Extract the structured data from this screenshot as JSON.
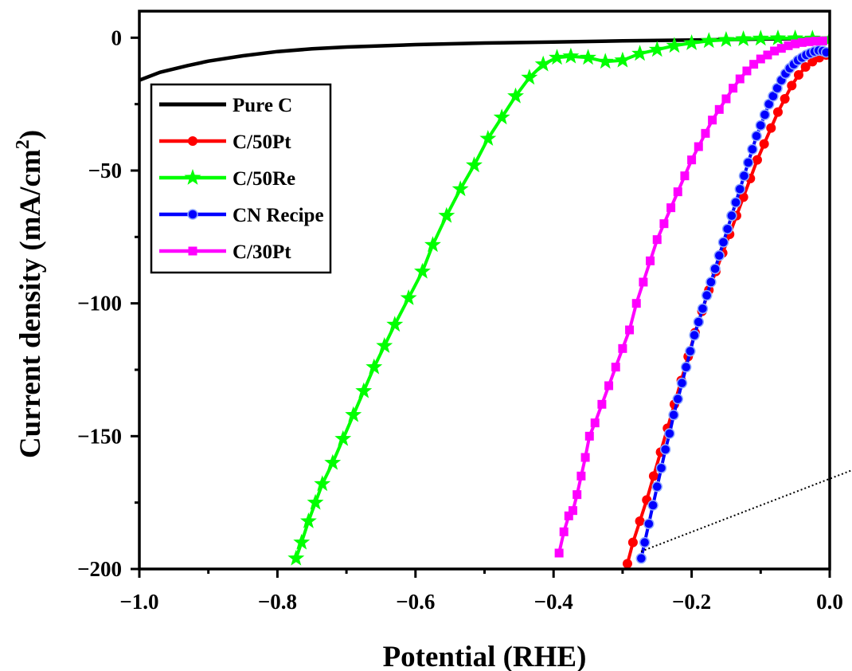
{
  "chart_data": {
    "type": "line",
    "xlabel": "Potential (RHE)",
    "ylabel": "Current density (mA/cm",
    "ylabel_sup": "2",
    "ylabel_end": ")",
    "xlim": [
      -1.0,
      0.0
    ],
    "ylim": [
      -200,
      10
    ],
    "x_ticks": [
      -1.0,
      -0.8,
      -0.6,
      -0.4,
      -0.2,
      0.0
    ],
    "x_tick_labels": [
      "−1.0",
      "−0.8",
      "−0.6",
      "−0.4",
      "−0.2",
      "0.0"
    ],
    "y_ticks": [
      0,
      -50,
      -100,
      -150,
      -200
    ],
    "y_tick_labels": [
      "0",
      "−50",
      "−100",
      "−150",
      "−200"
    ],
    "grid": false,
    "legend_position": "top-left",
    "series": [
      {
        "name": "Pure C",
        "color": "#000000",
        "marker": "none",
        "x": [
          -1.0,
          -0.97,
          -0.93,
          -0.9,
          -0.85,
          -0.8,
          -0.75,
          -0.7,
          -0.6,
          -0.5,
          -0.4,
          -0.3,
          -0.2,
          -0.1,
          0.0
        ],
        "y": [
          -16,
          -13,
          -10.5,
          -8.8,
          -6.8,
          -5.2,
          -4.2,
          -3.5,
          -2.6,
          -2.0,
          -1.6,
          -1.2,
          -0.9,
          -0.5,
          -0.2
        ]
      },
      {
        "name": "C/50Pt",
        "color": "#ff0000",
        "marker": "circle",
        "x": [
          -0.293,
          -0.285,
          -0.275,
          -0.265,
          -0.255,
          -0.245,
          -0.235,
          -0.225,
          -0.215,
          -0.205,
          -0.195,
          -0.185,
          -0.175,
          -0.165,
          -0.155,
          -0.145,
          -0.135,
          -0.125,
          -0.115,
          -0.105,
          -0.095,
          -0.085,
          -0.075,
          -0.065,
          -0.055,
          -0.045,
          -0.035,
          -0.025,
          -0.015,
          -0.005,
          0.0
        ],
        "y": [
          -198,
          -190,
          -182,
          -174,
          -165,
          -156,
          -147,
          -138,
          -129,
          -120,
          -111,
          -103,
          -95,
          -88,
          -81,
          -74,
          -67,
          -60,
          -53,
          -46,
          -40,
          -34,
          -28,
          -23,
          -18,
          -14,
          -11,
          -9,
          -7.5,
          -6.5,
          -6
        ]
      },
      {
        "name": "C/50Re",
        "color": "#00ff00",
        "marker": "star",
        "x": [
          -0.773,
          -0.765,
          -0.755,
          -0.745,
          -0.735,
          -0.72,
          -0.705,
          -0.69,
          -0.675,
          -0.66,
          -0.645,
          -0.63,
          -0.61,
          -0.59,
          -0.575,
          -0.555,
          -0.535,
          -0.515,
          -0.495,
          -0.475,
          -0.455,
          -0.435,
          -0.415,
          -0.395,
          -0.375,
          -0.35,
          -0.325,
          -0.3,
          -0.275,
          -0.25,
          -0.225,
          -0.2,
          -0.175,
          -0.15,
          -0.125,
          -0.1,
          -0.075,
          -0.05,
          -0.025,
          0.0
        ],
        "y": [
          -196,
          -190,
          -182,
          -175,
          -168,
          -160,
          -151,
          -142,
          -133,
          -124,
          -116,
          -108,
          -98,
          -88,
          -78,
          -67,
          -57,
          -48,
          -38,
          -30,
          -22,
          -15,
          -10,
          -7.5,
          -7,
          -7.5,
          -9,
          -8.5,
          -6,
          -4.5,
          -3,
          -2,
          -1.2,
          -0.8,
          -0.5,
          -0.3,
          -0.2,
          -0.2,
          -0.3,
          -0.5
        ]
      },
      {
        "name": "CN Recipe",
        "color": "#0000ff",
        "marker": "circle",
        "x": [
          -0.273,
          -0.268,
          -0.262,
          -0.256,
          -0.25,
          -0.244,
          -0.238,
          -0.232,
          -0.226,
          -0.22,
          -0.214,
          -0.208,
          -0.202,
          -0.196,
          -0.19,
          -0.184,
          -0.178,
          -0.172,
          -0.166,
          -0.16,
          -0.154,
          -0.148,
          -0.142,
          -0.136,
          -0.13,
          -0.124,
          -0.118,
          -0.112,
          -0.106,
          -0.1,
          -0.094,
          -0.088,
          -0.082,
          -0.076,
          -0.07,
          -0.064,
          -0.058,
          -0.052,
          -0.046,
          -0.04,
          -0.034,
          -0.028,
          -0.022,
          -0.016,
          -0.01,
          -0.005
        ],
        "y": [
          -196,
          -190,
          -183,
          -176,
          -169,
          -162,
          -155,
          -149,
          -142,
          -136,
          -130,
          -124,
          -118,
          -112,
          -107,
          -102,
          -97,
          -92,
          -87,
          -82,
          -77,
          -72,
          -67,
          -62,
          -57,
          -52,
          -47,
          -42,
          -37,
          -33,
          -29,
          -25,
          -22,
          -19,
          -16,
          -13.5,
          -11.5,
          -10,
          -8.5,
          -7.5,
          -6.5,
          -5.8,
          -5.2,
          -4.8,
          -5,
          -5.5
        ]
      },
      {
        "name": "C/30Pt",
        "color": "#ff00ff",
        "marker": "square",
        "x": [
          -0.392,
          -0.385,
          -0.378,
          -0.372,
          -0.366,
          -0.36,
          -0.354,
          -0.348,
          -0.34,
          -0.33,
          -0.32,
          -0.31,
          -0.3,
          -0.29,
          -0.28,
          -0.27,
          -0.26,
          -0.25,
          -0.24,
          -0.23,
          -0.22,
          -0.21,
          -0.2,
          -0.19,
          -0.18,
          -0.17,
          -0.16,
          -0.15,
          -0.14,
          -0.13,
          -0.12,
          -0.11,
          -0.1,
          -0.09,
          -0.08,
          -0.07,
          -0.06,
          -0.05,
          -0.04,
          -0.03,
          -0.02,
          -0.01
        ],
        "y": [
          -194,
          -186,
          -180,
          -178,
          -172,
          -165,
          -158,
          -150,
          -145,
          -138,
          -131,
          -124,
          -117,
          -110,
          -100,
          -92,
          -84,
          -76,
          -70,
          -64,
          -58,
          -52,
          -46,
          -41,
          -36,
          -31,
          -27,
          -23,
          -19,
          -15.5,
          -12.5,
          -10,
          -8,
          -6.5,
          -5,
          -4,
          -3,
          -2.3,
          -1.8,
          -1.5,
          -1.3,
          -1.2
        ]
      }
    ]
  }
}
